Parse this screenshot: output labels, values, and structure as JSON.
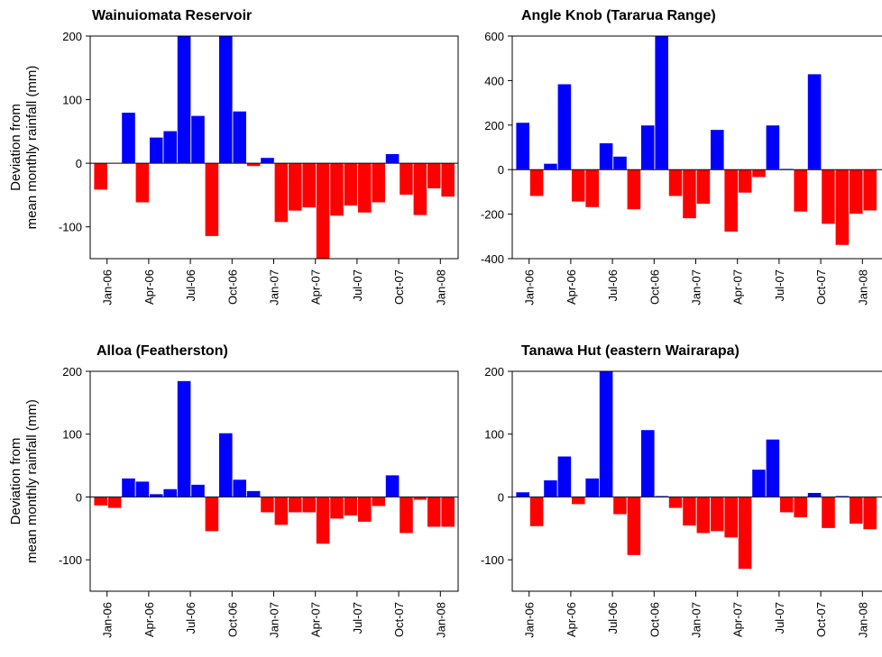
{
  "chart_data": [
    {
      "type": "bar",
      "title": "Wainuiomata Reservoir",
      "ylabel": [
        "Deviation from",
        "mean monthly rainfall (mm)"
      ],
      "categories": [
        "Jan-06",
        null,
        null,
        "Apr-06",
        null,
        null,
        "Jul-06",
        null,
        null,
        "Oct-06",
        null,
        null,
        "Jan-07",
        null,
        null,
        "Apr-07",
        null,
        null,
        "Jul-07",
        null,
        null,
        "Oct-07",
        null,
        null,
        "Jan-08",
        null
      ],
      "values": [
        -42,
        0,
        80,
        -62,
        41,
        51,
        200,
        75,
        -115,
        200,
        82,
        -5,
        9,
        -93,
        -75,
        -70,
        -150,
        -83,
        -67,
        -78,
        -62,
        15,
        -50,
        -82,
        -40,
        -53
      ],
      "colors": {
        "positive": "#0000ff",
        "negative": "#ff0000"
      },
      "ylim": [
        -150,
        200
      ],
      "yticks": [
        -100,
        0,
        100,
        200
      ]
    },
    {
      "type": "bar",
      "title": "Angle Knob (Tararua Range)",
      "categories": [
        "Jan-06",
        null,
        null,
        "Apr-06",
        null,
        null,
        "Jul-06",
        null,
        null,
        "Oct-06",
        null,
        null,
        "Jan-07",
        null,
        null,
        "Apr-07",
        null,
        null,
        "Jul-07",
        null,
        null,
        "Oct-07",
        null,
        null,
        "Jan-08",
        null
      ],
      "values": [
        212,
        -120,
        28,
        385,
        -145,
        -170,
        120,
        60,
        -180,
        200,
        600,
        -120,
        -220,
        -155,
        180,
        -280,
        -105,
        -35,
        200,
        5,
        -190,
        430,
        -245,
        -340,
        -200,
        -185
      ],
      "colors": {
        "positive": "#0000ff",
        "negative": "#ff0000"
      },
      "ylim": [
        -400,
        600
      ],
      "yticks": [
        -400,
        -200,
        0,
        200,
        400,
        600
      ]
    },
    {
      "type": "bar",
      "title": "Alloa (Featherston)",
      "ylabel": [
        "Deviation from",
        "mean monthly rainfall (mm)"
      ],
      "categories": [
        "Jan-06",
        null,
        null,
        "Apr-06",
        null,
        null,
        "Jul-06",
        null,
        null,
        "Oct-06",
        null,
        null,
        "Jan-07",
        null,
        null,
        "Apr-07",
        null,
        null,
        "Jul-07",
        null,
        null,
        "Oct-07",
        null,
        null,
        "Jan-08",
        null
      ],
      "values": [
        -14,
        -18,
        30,
        25,
        5,
        13,
        185,
        20,
        -55,
        102,
        28,
        10,
        -25,
        -45,
        -25,
        -25,
        -75,
        -35,
        -30,
        -40,
        -15,
        35,
        -58,
        -5,
        -48,
        -48
      ],
      "colors": {
        "positive": "#0000ff",
        "negative": "#ff0000"
      },
      "ylim": [
        -150,
        200
      ],
      "yticks": [
        -100,
        0,
        100,
        200
      ]
    },
    {
      "type": "bar",
      "title": "Tanawa Hut (eastern Wairarapa)",
      "categories": [
        "Jan-06",
        null,
        null,
        "Apr-06",
        null,
        null,
        "Jul-06",
        null,
        null,
        "Oct-06",
        null,
        null,
        "Jan-07",
        null,
        null,
        "Apr-07",
        null,
        null,
        "Jul-07",
        null,
        null,
        "Oct-07",
        null,
        null,
        "Jan-08",
        null
      ],
      "values": [
        8,
        -47,
        27,
        65,
        -12,
        30,
        200,
        -28,
        -93,
        107,
        2,
        -18,
        -46,
        -58,
        -55,
        -65,
        -115,
        44,
        92,
        -25,
        -33,
        7,
        -50,
        2,
        -43,
        -52
      ],
      "colors": {
        "positive": "#0000ff",
        "negative": "#ff0000"
      },
      "ylim": [
        -150,
        200
      ],
      "yticks": [
        -100,
        0,
        100,
        200
      ]
    }
  ]
}
